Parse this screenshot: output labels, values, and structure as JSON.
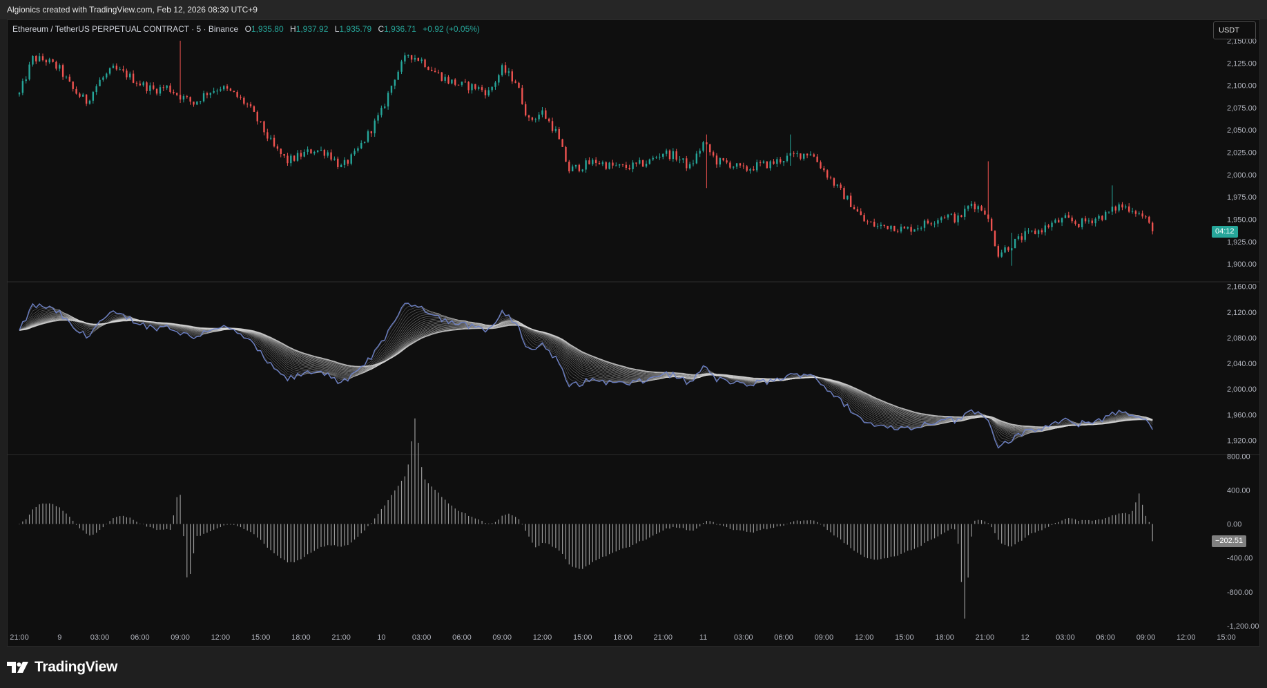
{
  "header": {
    "attribution": "Algionics created with TradingView.com, Feb 12, 2026 08:30 UTC+9"
  },
  "legend": {
    "symbol": "Ethereum / TetherUS PERPETUAL CONTRACT · 5 · Binance",
    "o_label": "O",
    "o": "1,935.80",
    "h_label": "H",
    "h": "1,937.92",
    "l_label": "L",
    "l": "1,935.79",
    "c_label": "C",
    "c": "1,936.71",
    "change": "+0.92 (+0.05%)"
  },
  "currency_button": "USDT",
  "countdown": "04:12",
  "brand": {
    "name": "TradingView"
  },
  "colors": {
    "up": "#26a69a",
    "down": "#ef5350",
    "ribbon": "#d8d8d8",
    "price_line": "#6b7fc4",
    "histogram": "#9a9a9a",
    "countdown_bg": "#26a69a",
    "osc_tag_bg": "#808080"
  },
  "chart_data": [
    {
      "type": "candlestick",
      "title": "Ethereum / TetherUS PERPETUAL CONTRACT · 5 · Binance",
      "ylim": [
        1880,
        2160
      ],
      "y_ticks": [
        "2,150.00",
        "2,125.00",
        "2,100.00",
        "2,075.00",
        "2,050.00",
        "2,025.00",
        "2,000.00",
        "1,975.00",
        "1,950.00",
        "1,925.00",
        "1,900.00"
      ],
      "y_tick_values": [
        2150,
        2125,
        2100,
        2075,
        2050,
        2025,
        2000,
        1975,
        1950,
        1925,
        1900
      ],
      "x_ticks": [
        "21:00",
        "9",
        "03:00",
        "06:00",
        "09:00",
        "12:00",
        "15:00",
        "18:00",
        "21:00",
        "10",
        "03:00",
        "06:00",
        "09:00",
        "12:00",
        "15:00",
        "18:00",
        "21:00",
        "11",
        "03:00",
        "06:00",
        "09:00",
        "12:00",
        "15:00",
        "18:00",
        "21:00",
        "12",
        "03:00",
        "06:00",
        "09:00",
        "12:00",
        "15:00"
      ],
      "x_tick_hours": [
        0,
        3,
        6,
        9,
        12,
        15,
        18,
        21,
        24,
        27,
        30,
        33,
        36,
        39,
        42,
        45,
        48,
        51,
        54,
        57,
        60,
        63,
        66,
        69,
        72,
        75,
        78,
        81,
        84,
        87,
        90
      ],
      "last_price_hours": 84.5,
      "close_anchor_hours": [
        0,
        1,
        2,
        3,
        4,
        5,
        6,
        7,
        8,
        9,
        10,
        11,
        12,
        13,
        14,
        15,
        16,
        17,
        18,
        19,
        20,
        21,
        22,
        23,
        24,
        25,
        26,
        27,
        28,
        29,
        30,
        31,
        32,
        33,
        34,
        35,
        36,
        37,
        38,
        39,
        40,
        41,
        42,
        43,
        44,
        45,
        46,
        47,
        48,
        49,
        50,
        51,
        52,
        53,
        54,
        55,
        56,
        57,
        58,
        59,
        60,
        61,
        62,
        63,
        64,
        65,
        66,
        67,
        68,
        69,
        70,
        71,
        72,
        73,
        74,
        75,
        76,
        77,
        78,
        79,
        80,
        81,
        82,
        83,
        84,
        84.5
      ],
      "close_anchors": [
        2090,
        2130,
        2128,
        2118,
        2095,
        2082,
        2105,
        2118,
        2112,
        2102,
        2095,
        2098,
        2088,
        2080,
        2092,
        2098,
        2090,
        2078,
        2055,
        2030,
        2015,
        2022,
        2028,
        2025,
        2008,
        2022,
        2045,
        2070,
        2110,
        2135,
        2128,
        2115,
        2105,
        2100,
        2098,
        2092,
        2118,
        2105,
        2060,
        2070,
        2048,
        2005,
        2010,
        2015,
        2010,
        2008,
        2010,
        2015,
        2025,
        2020,
        2008,
        2035,
        2015,
        2012,
        2005,
        2010,
        2012,
        2018,
        2022,
        2025,
        2005,
        1985,
        1968,
        1948,
        1942,
        1943,
        1938,
        1942,
        1948,
        1955,
        1950,
        1968,
        1960,
        1912,
        1922,
        1932,
        1937,
        1945,
        1950,
        1945,
        1950,
        1955,
        1965,
        1962,
        1950,
        1936.71
      ],
      "spike_hours": [
        12.1,
        72.3,
        81.5,
        51.2,
        57.6,
        74.0
      ],
      "spike_highs": [
        2150,
        2015,
        1988,
        2045,
        2045,
        1935
      ],
      "spike_lows": [
        2090,
        1985,
        1955,
        1985,
        2010,
        1898
      ]
    },
    {
      "type": "line",
      "title": "",
      "ylim": [
        1900,
        2165
      ],
      "y_ticks": [
        "2,160.00",
        "2,120.00",
        "2,080.00",
        "2,040.00",
        "2,000.00",
        "1,960.00",
        "1,920.00"
      ],
      "y_tick_values": [
        2160,
        2120,
        2080,
        2040,
        2000,
        1960,
        1920
      ],
      "ribbon_lines": 22,
      "ribbon_min_period_hours": 0.4,
      "ribbon_max_period_hours": 9
    },
    {
      "type": "bar",
      "title": "",
      "ylim": [
        -1250,
        820
      ],
      "y_ticks": [
        "800.00",
        "400.00",
        "0.00",
        "-400.00",
        "-800.00",
        "-1,200.00"
      ],
      "y_tick_values": [
        800,
        400,
        0,
        -400,
        -800,
        -1200
      ],
      "last_value": "−202.51",
      "last_value_num": -202.51
    }
  ]
}
